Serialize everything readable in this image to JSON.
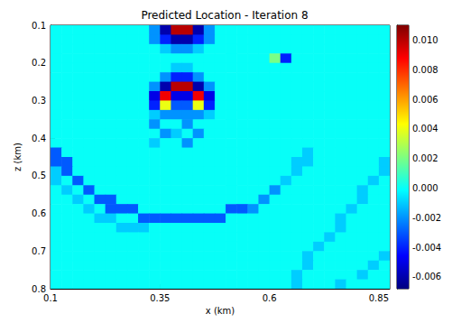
{
  "chart_data": {
    "type": "heatmap",
    "title": "Predicted Location - Iteration 8",
    "x_label": "x (km)",
    "y_label": "z (km)",
    "xlim": [
      0.1,
      0.875
    ],
    "ylim": [
      0.8,
      0.1
    ],
    "xticks": [
      0.1,
      0.35,
      0.6,
      0.85
    ],
    "yticks": [
      0.1,
      0.2,
      0.3,
      0.4,
      0.5,
      0.6,
      0.7,
      0.8
    ],
    "colorbar": {
      "range": [
        -0.0068,
        0.011
      ],
      "ticks": [
        -0.006,
        -0.004,
        -0.002,
        {
          "value": 0,
          "label": "0.000"
        },
        0.002,
        0.004,
        0.006,
        0.008,
        {
          "value": 0.01,
          "label": "0.010"
        }
      ]
    },
    "x": [
      0.1125,
      0.1375,
      0.1625,
      0.1875,
      0.2125,
      0.2375,
      0.2625,
      0.2875,
      0.3125,
      0.3375,
      0.3625,
      0.3875,
      0.4125,
      0.4375,
      0.4625,
      0.4875,
      0.5125,
      0.5375,
      0.5625,
      0.5875,
      0.6125,
      0.6375,
      0.6625,
      0.6875,
      0.7125,
      0.7375,
      0.7625,
      0.7875,
      0.8125,
      0.8375,
      0.8625
    ],
    "y": [
      0.1125,
      0.1375,
      0.1625,
      0.1875,
      0.2125,
      0.2375,
      0.2625,
      0.2875,
      0.3125,
      0.3375,
      0.3625,
      0.3875,
      0.4125,
      0.4375,
      0.4625,
      0.4875,
      0.5125,
      0.5375,
      0.5625,
      0.5875,
      0.6125,
      0.6375,
      0.6625,
      0.6875,
      0.7125,
      0.7375,
      0.7625,
      0.7875
    ],
    "cells": [
      [
        0,
        0,
        0,
        0,
        0,
        0,
        0,
        0,
        0,
        -0.002,
        -0.006,
        0.01,
        0.01,
        -0.006,
        -0.002,
        0,
        0,
        0,
        0,
        0,
        0,
        0,
        0,
        0,
        0,
        0,
        0,
        0,
        0,
        0,
        0
      ],
      [
        0,
        0,
        0,
        0,
        0,
        0,
        0,
        0,
        0,
        -0.002,
        -0.004,
        -0.006,
        -0.006,
        -0.004,
        -0.002,
        0,
        0,
        0,
        0,
        0,
        0,
        0,
        0,
        0,
        0,
        0,
        0,
        0,
        0,
        0,
        0
      ],
      [
        0,
        0,
        0,
        0,
        0,
        0,
        0,
        0,
        0,
        0,
        -0.001,
        -0.002,
        -0.002,
        -0.001,
        0,
        0,
        0,
        0,
        0,
        0,
        0,
        0,
        0,
        0,
        0,
        0,
        0,
        0,
        0,
        0,
        0
      ],
      [
        0,
        0,
        0,
        0,
        0,
        0,
        0,
        0,
        0,
        0,
        0,
        0,
        0,
        0,
        0,
        0,
        0,
        0,
        0,
        0,
        0.002,
        -0.004,
        0,
        0,
        0,
        0,
        0,
        0,
        0,
        0,
        0
      ],
      [
        0,
        0,
        0,
        0,
        0,
        0,
        0,
        0,
        0,
        0,
        0,
        -0.001,
        -0.001,
        0,
        0,
        0,
        0,
        0,
        0,
        0,
        0,
        0,
        0,
        0,
        0,
        0,
        0,
        0,
        0,
        0,
        0
      ],
      [
        0,
        0,
        0,
        0,
        0,
        0,
        0,
        0,
        0,
        0,
        -0.002,
        -0.004,
        -0.004,
        -0.002,
        0,
        0,
        0,
        0,
        0,
        0,
        0,
        0,
        0,
        0,
        0,
        0,
        0,
        0,
        0,
        0,
        0
      ],
      [
        0,
        0,
        0,
        0,
        0,
        0,
        0,
        0,
        0,
        -0.002,
        -0.006,
        0.01,
        0.01,
        -0.006,
        -0.002,
        0,
        0,
        0,
        0,
        0,
        0,
        0,
        0,
        0,
        0,
        0,
        0,
        0,
        0,
        0,
        0
      ],
      [
        0,
        0,
        0,
        0,
        0,
        0,
        0,
        0,
        0,
        -0.005,
        0.009,
        -0.005,
        -0.005,
        0.009,
        -0.005,
        0,
        0,
        0,
        0,
        0,
        0,
        0,
        0,
        0,
        0,
        0,
        0,
        0,
        0,
        0,
        0
      ],
      [
        0,
        0,
        0,
        0,
        0,
        0,
        0,
        0,
        0,
        -0.004,
        0.004,
        -0.003,
        -0.003,
        0.004,
        -0.004,
        0,
        0,
        0,
        0,
        0,
        0,
        0,
        0,
        0,
        0,
        0,
        0,
        0,
        0,
        0,
        0
      ],
      [
        0,
        0,
        0,
        0,
        0,
        0,
        0,
        0,
        0,
        -0.001,
        -0.002,
        -0.002,
        -0.002,
        -0.002,
        -0.001,
        0,
        0,
        0,
        0,
        0,
        0,
        0,
        0,
        0,
        0,
        0,
        0,
        0,
        0,
        0,
        0
      ],
      [
        0,
        0,
        0,
        0,
        0,
        0,
        0,
        0,
        0,
        -0.002,
        0,
        0,
        -0.002,
        0,
        0,
        0,
        0,
        0,
        0,
        0,
        0,
        0,
        0,
        0,
        0,
        0,
        0,
        0,
        0,
        0,
        0
      ],
      [
        0,
        0,
        0,
        0,
        0,
        0,
        0,
        0,
        0,
        0,
        -0.002,
        -0.001,
        0,
        -0.002,
        0,
        0,
        0,
        0,
        0,
        0,
        0,
        0,
        0,
        0,
        0,
        0,
        0,
        0,
        0,
        0,
        0
      ],
      [
        0,
        0,
        0,
        0,
        0,
        0,
        0,
        0,
        0,
        -0.001,
        0,
        0,
        -0.002,
        0,
        0,
        0,
        0,
        0,
        0,
        0,
        0,
        0,
        0,
        0,
        0,
        0,
        0,
        0,
        0,
        0,
        0
      ],
      [
        -0.003,
        0,
        0,
        0,
        0,
        0,
        0,
        0,
        0,
        0,
        0,
        0,
        0,
        0,
        0,
        0,
        0,
        0,
        0,
        0,
        0,
        0,
        0,
        -0.001,
        0,
        0,
        0,
        0,
        0,
        0,
        0
      ],
      [
        -0.003,
        -0.003,
        0,
        0,
        0,
        0,
        0,
        0,
        0,
        0,
        0,
        0,
        0,
        0,
        0,
        0,
        0,
        0,
        0,
        0,
        0,
        0,
        -0.001,
        -0.001,
        0,
        0,
        0,
        0,
        0,
        0,
        -0.001
      ],
      [
        -0.001,
        -0.003,
        0,
        0,
        0,
        0,
        0,
        0,
        0,
        0,
        0,
        0,
        0,
        0,
        0,
        0,
        0,
        0,
        0,
        0,
        0,
        0,
        -0.001,
        0,
        0,
        0,
        0,
        0,
        0,
        0,
        -0.001
      ],
      [
        -0.001,
        0,
        -0.003,
        0,
        0,
        0,
        0,
        0,
        0,
        0,
        0,
        0,
        0,
        0,
        0,
        0,
        0,
        0,
        0,
        0,
        0,
        -0.001,
        0,
        0,
        0,
        0,
        0,
        0,
        0,
        -0.001,
        0
      ],
      [
        0,
        -0.001,
        0,
        -0.003,
        0,
        0,
        0,
        0,
        0,
        0,
        0,
        0,
        0,
        0,
        0,
        0,
        0,
        0,
        0,
        0,
        -0.002,
        0,
        0,
        0,
        0,
        0,
        0,
        0,
        -0.001,
        0,
        0
      ],
      [
        0,
        0,
        -0.001,
        0,
        -0.003,
        -0.003,
        0,
        0,
        0,
        0,
        0,
        0,
        0,
        0,
        0,
        0,
        0,
        0,
        0,
        -0.002,
        0,
        0,
        0,
        0,
        0,
        0,
        0,
        0,
        -0.001,
        0,
        0
      ],
      [
        0,
        0,
        0,
        -0.001,
        0,
        -0.003,
        -0.003,
        -0.003,
        0,
        0,
        0,
        0,
        0,
        0,
        0,
        0,
        -0.003,
        -0.003,
        -0.002,
        0,
        0,
        0,
        0,
        0,
        0,
        0,
        0,
        -0.001,
        0,
        0,
        0
      ],
      [
        0,
        0,
        0,
        0,
        -0.001,
        -0.001,
        0,
        0,
        -0.003,
        -0.003,
        -0.003,
        -0.003,
        -0.003,
        -0.003,
        -0.003,
        -0.003,
        0,
        0,
        0,
        0,
        0,
        0,
        0,
        0,
        0,
        0,
        -0.001,
        0,
        0,
        0,
        0
      ],
      [
        0,
        0,
        0,
        0,
        0,
        0,
        -0.001,
        -0.001,
        -0.001,
        0,
        0,
        0,
        0,
        0,
        0,
        0,
        0,
        0,
        0,
        0,
        0,
        0,
        0,
        0,
        0,
        0,
        -0.001,
        0,
        0,
        0,
        0
      ],
      [
        0,
        0,
        0,
        0,
        0,
        0,
        0,
        0,
        0,
        0,
        0,
        0,
        0,
        0,
        0,
        0,
        0,
        0,
        0,
        0,
        0,
        0,
        0,
        0,
        0,
        -0.001,
        0,
        0,
        0,
        0,
        0
      ],
      [
        0,
        0,
        0,
        0,
        0,
        0,
        0,
        0,
        0,
        0,
        0,
        0,
        0,
        0,
        0,
        0,
        0,
        0,
        0,
        0,
        0,
        0,
        0,
        0,
        -0.001,
        0,
        0,
        0,
        0,
        0,
        0
      ],
      [
        0,
        0,
        0,
        0,
        0,
        0,
        0,
        0,
        0,
        0,
        0,
        0,
        0,
        0,
        0,
        0,
        0,
        0,
        0,
        0,
        0,
        0,
        0,
        -0.001,
        0,
        0,
        0,
        0,
        0,
        0,
        -0.001
      ],
      [
        0,
        0,
        0,
        0,
        0,
        0,
        0,
        0,
        0,
        0,
        0,
        0,
        0,
        0,
        0,
        0,
        0,
        0,
        0,
        0,
        0,
        0,
        0,
        -0.001,
        0,
        0,
        0,
        0,
        0,
        -0.001,
        0
      ],
      [
        0,
        0,
        0,
        0,
        0,
        0,
        0,
        0,
        0,
        0,
        0,
        0,
        0,
        0,
        0,
        0,
        0,
        0,
        0,
        0,
        0,
        0,
        -0.001,
        0,
        0,
        0,
        0,
        0,
        -0.001,
        0,
        0
      ],
      [
        0,
        0,
        0,
        0,
        0,
        0,
        0,
        0,
        0,
        0,
        0,
        0,
        0,
        0,
        0,
        0,
        0,
        0,
        0,
        0,
        0,
        0,
        -0.001,
        0,
        0,
        0,
        -0.001,
        0,
        0,
        0,
        0
      ]
    ]
  }
}
